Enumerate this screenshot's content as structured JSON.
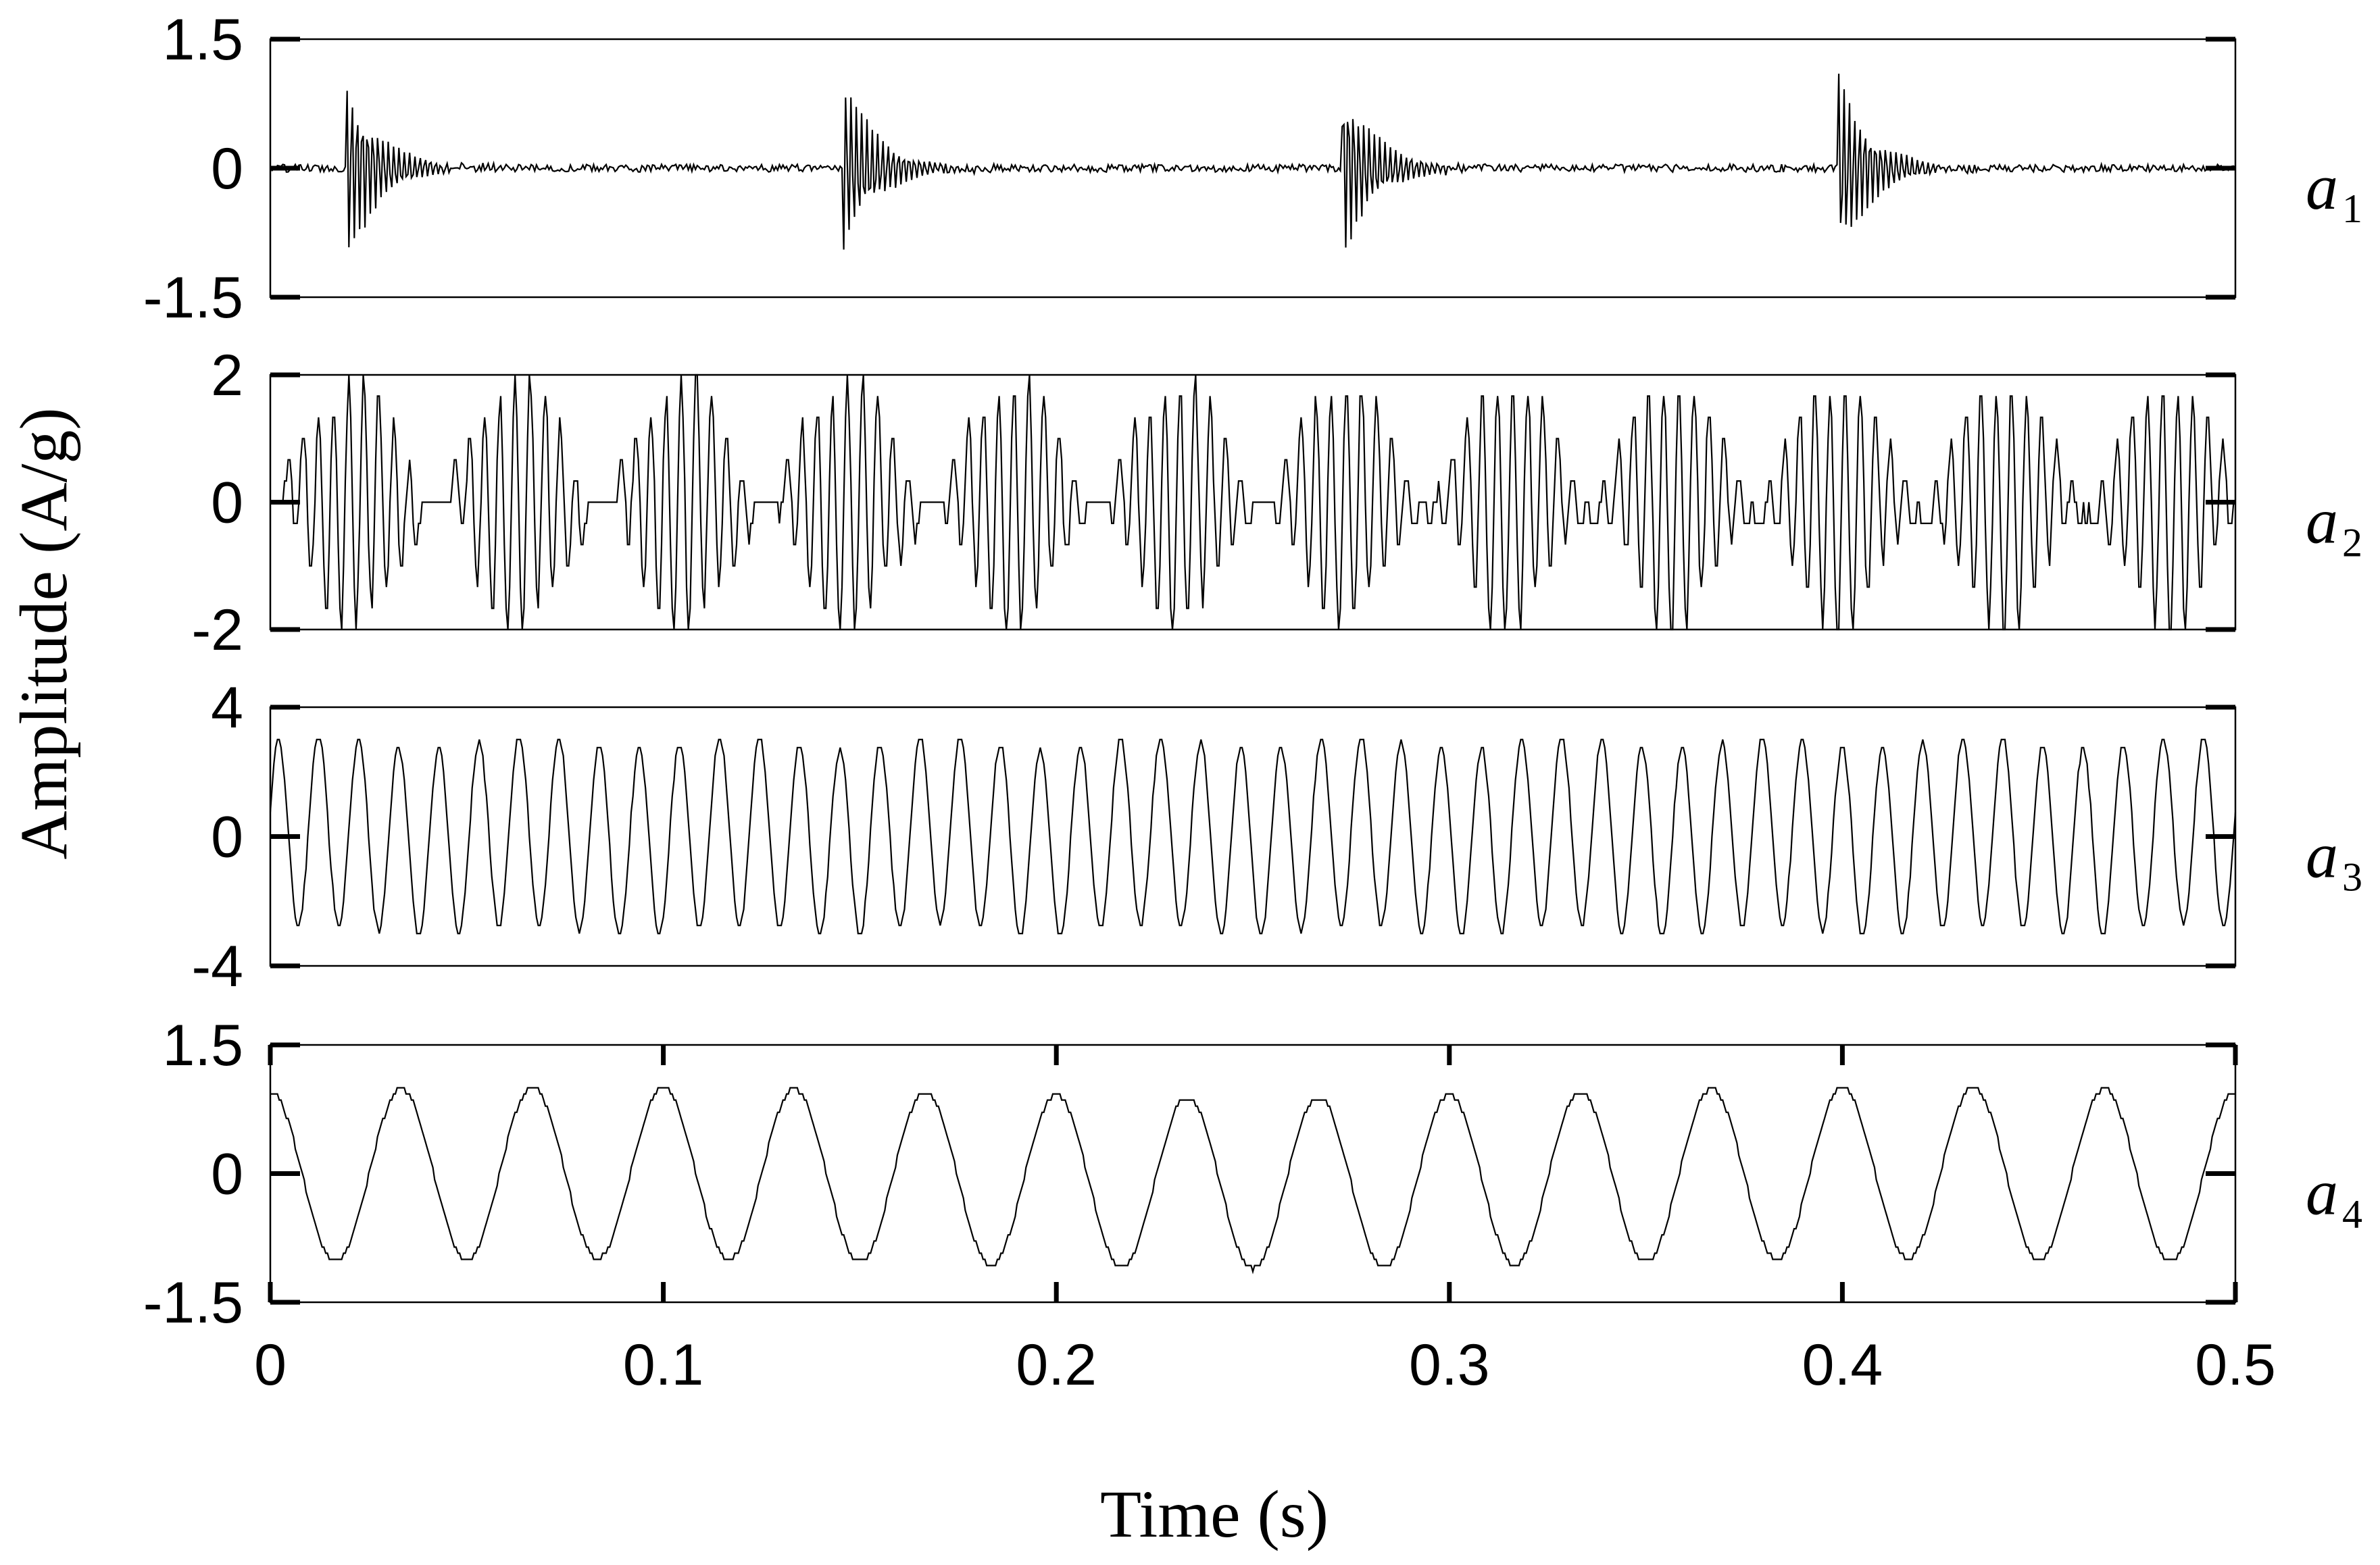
{
  "chart_data": {
    "type": "line",
    "xlabel": "Time (s)",
    "ylabel": "Amplitude (A/g)",
    "xlim": [
      0,
      0.5
    ],
    "x_ticks": [
      "0",
      "0.1",
      "0.2",
      "0.3",
      "0.4",
      "0.5"
    ],
    "grid": false,
    "panels": [
      {
        "label": "a",
        "label_sub": "1",
        "ylim": [
          -1.5,
          1.5
        ],
        "y_ticks": [
          "1.5",
          "0",
          "-1.5"
        ],
        "y_tick_values": [
          1.5,
          0,
          -1.5
        ],
        "pattern": "impulse_bursts",
        "burst_times_s": [
          0.0195,
          0.1455,
          0.2725,
          0.399
        ],
        "burst_peak_amplitude": 1.2,
        "signal_range": [
          -1.2,
          1.25
        ]
      },
      {
        "label": "a",
        "label_sub": "2",
        "ylim": [
          -2,
          2
        ],
        "y_ticks": [
          "2",
          "0",
          "-2"
        ],
        "y_tick_values": [
          2,
          0,
          -2
        ],
        "pattern": "modulated_oscillation",
        "envelope_period_s": 0.042,
        "carrier_frequency_hz": 260,
        "signal_range": [
          -1.9,
          2.0
        ]
      },
      {
        "label": "a",
        "label_sub": "3",
        "ylim": [
          -4,
          4
        ],
        "y_ticks": [
          "4",
          "0",
          "-4"
        ],
        "y_tick_values": [
          4,
          0,
          -4
        ],
        "pattern": "periodic_oscillation",
        "frequency_hz": 98,
        "signal_range": [
          -3.0,
          3.2
        ]
      },
      {
        "label": "a",
        "label_sub": "4",
        "ylim": [
          -1.5,
          1.5
        ],
        "y_ticks": [
          "1.5",
          "0",
          "-1.5"
        ],
        "y_tick_values": [
          1.5,
          0,
          -1.5
        ],
        "pattern": "sinusoid",
        "frequency_hz": 30,
        "amplitude": 1.0,
        "signal_range": [
          -1.1,
          1.05
        ]
      }
    ]
  }
}
